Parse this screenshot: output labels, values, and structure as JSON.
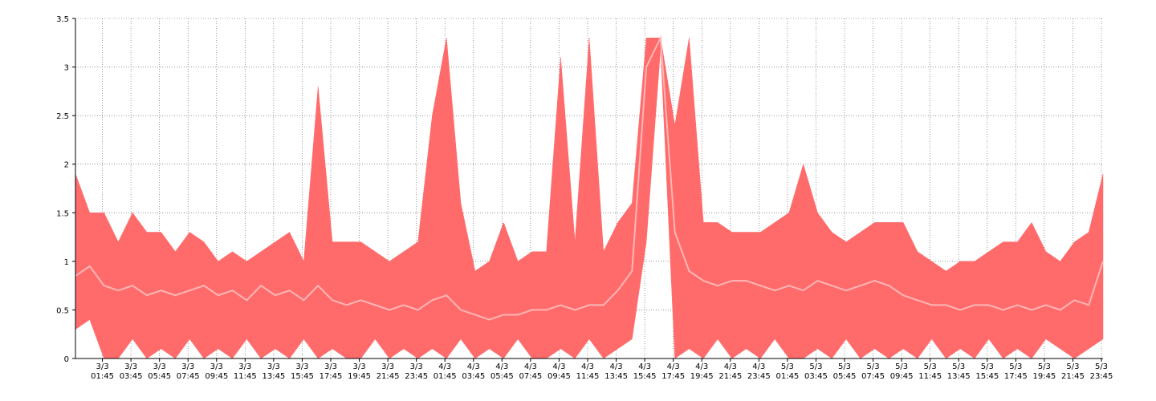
{
  "chart_data": {
    "type": "area",
    "title": "",
    "xlabel": "",
    "ylabel": "",
    "ylim": [
      0,
      3.5
    ],
    "y_ticks": [
      "0",
      "0.5",
      "1",
      "1.5",
      "2",
      "2.5",
      "3",
      "3.5"
    ],
    "x_range_hours": [
      0,
      72
    ],
    "x_tick_labels": [
      {
        "date": "3/3",
        "time": "01:45"
      },
      {
        "date": "3/3",
        "time": "03:45"
      },
      {
        "date": "3/3",
        "time": "05:45"
      },
      {
        "date": "3/3",
        "time": "07:45"
      },
      {
        "date": "3/3",
        "time": "09:45"
      },
      {
        "date": "3/3",
        "time": "11:45"
      },
      {
        "date": "3/3",
        "time": "13:45"
      },
      {
        "date": "3/3",
        "time": "15:45"
      },
      {
        "date": "3/3",
        "time": "17:45"
      },
      {
        "date": "3/3",
        "time": "19:45"
      },
      {
        "date": "3/3",
        "time": "21:45"
      },
      {
        "date": "3/3",
        "time": "23:45"
      },
      {
        "date": "4/3",
        "time": "01:45"
      },
      {
        "date": "4/3",
        "time": "03:45"
      },
      {
        "date": "4/3",
        "time": "05:45"
      },
      {
        "date": "4/3",
        "time": "07:45"
      },
      {
        "date": "4/3",
        "time": "09:45"
      },
      {
        "date": "4/3",
        "time": "11:45"
      },
      {
        "date": "4/3",
        "time": "13:45"
      },
      {
        "date": "4/3",
        "time": "15:45"
      },
      {
        "date": "4/3",
        "time": "17:45"
      },
      {
        "date": "4/3",
        "time": "19:45"
      },
      {
        "date": "4/3",
        "time": "21:45"
      },
      {
        "date": "4/3",
        "time": "23:45"
      },
      {
        "date": "5/3",
        "time": "01:45"
      },
      {
        "date": "5/3",
        "time": "03:45"
      },
      {
        "date": "5/3",
        "time": "05:45"
      },
      {
        "date": "5/3",
        "time": "07:45"
      },
      {
        "date": "5/3",
        "time": "09:45"
      },
      {
        "date": "5/3",
        "time": "11:45"
      },
      {
        "date": "5/3",
        "time": "13:45"
      },
      {
        "date": "5/3",
        "time": "15:45"
      },
      {
        "date": "5/3",
        "time": "17:45"
      },
      {
        "date": "5/3",
        "time": "19:45"
      },
      {
        "date": "5/3",
        "time": "21:45"
      },
      {
        "date": "5/3",
        "time": "23:45"
      }
    ],
    "grid": true,
    "legend": "none",
    "colors": {
      "band": "#ff6b6b",
      "avg": "#ffb6b6",
      "grid": "#555555",
      "axis": "#000000"
    },
    "series": [
      {
        "role": "max",
        "points": [
          [
            0.0,
            1.9
          ],
          [
            0.5,
            1.6
          ],
          [
            1.0,
            1.5
          ],
          [
            1.5,
            1.3
          ],
          [
            2.0,
            1.5
          ],
          [
            2.5,
            1.3
          ],
          [
            3.0,
            1.2
          ],
          [
            3.5,
            1.4
          ],
          [
            4.0,
            1.5
          ],
          [
            4.5,
            1.2
          ],
          [
            5.0,
            1.1
          ],
          [
            5.5,
            1.3
          ],
          [
            6.0,
            1.3
          ],
          [
            6.5,
            1.2
          ],
          [
            7.0,
            1.2
          ],
          [
            7.5,
            1.1
          ],
          [
            8.0,
            1.1
          ],
          [
            8.5,
            1.4
          ],
          [
            9.0,
            1.2
          ],
          [
            9.5,
            1.1
          ],
          [
            10.0,
            1.0
          ],
          [
            10.5,
            1.1
          ],
          [
            11.0,
            1.1
          ],
          [
            11.5,
            1.3
          ],
          [
            12.0,
            1.0
          ],
          [
            12.5,
            1.1
          ],
          [
            13.0,
            1.2
          ],
          [
            13.5,
            1.1
          ],
          [
            14.0,
            1.2
          ],
          [
            14.5,
            1.1
          ],
          [
            15.0,
            1.3
          ],
          [
            15.5,
            1.3
          ],
          [
            16.0,
            1.0
          ],
          [
            16.5,
            1.2
          ],
          [
            17.0,
            2.8
          ],
          [
            17.5,
            1.2
          ],
          [
            18.0,
            1.2
          ],
          [
            18.5,
            1.0
          ],
          [
            19.0,
            1.2
          ],
          [
            19.5,
            1.0
          ],
          [
            20.0,
            1.2
          ],
          [
            20.5,
            1.2
          ],
          [
            21.0,
            1.1
          ],
          [
            21.5,
            1.0
          ],
          [
            22.0,
            1.2
          ],
          [
            22.5,
            1.1
          ],
          [
            23.0,
            1.0
          ],
          [
            23.5,
            1.0
          ],
          [
            24.0,
            1.1
          ],
          [
            24.5,
            1.1
          ],
          [
            25.0,
            1.2
          ],
          [
            25.5,
            2.5
          ],
          [
            26.0,
            2.6
          ],
          [
            26.5,
            3.3
          ],
          [
            27.0,
            1.1
          ],
          [
            27.5,
            1.6
          ],
          [
            28.0,
            1.2
          ],
          [
            28.5,
            0.9
          ],
          [
            29.0,
            1.0
          ],
          [
            29.5,
            1.1
          ],
          [
            30.0,
            1.0
          ],
          [
            30.5,
            1.4
          ],
          [
            31.0,
            1.0
          ],
          [
            31.5,
            1.0
          ],
          [
            32.0,
            1.0
          ],
          [
            32.5,
            1.1
          ],
          [
            33.0,
            1.1
          ],
          [
            33.5,
            1.1
          ],
          [
            34.0,
            3.1
          ],
          [
            34.5,
            1.1
          ],
          [
            35.0,
            1.2
          ],
          [
            35.5,
            1.5
          ],
          [
            36.0,
            3.3
          ],
          [
            36.5,
            1.1
          ],
          [
            37.0,
            1.1
          ],
          [
            37.5,
            1.3
          ],
          [
            38.0,
            1.4
          ],
          [
            38.5,
            1.5
          ],
          [
            39.0,
            1.6
          ],
          [
            39.5,
            3.3
          ],
          [
            40.0,
            3.3
          ],
          [
            40.5,
            3.3
          ],
          [
            41.0,
            3.3
          ],
          [
            41.5,
            2.2
          ],
          [
            42.0,
            2.4
          ],
          [
            42.5,
            2.0
          ],
          [
            43.0,
            3.3
          ],
          [
            43.5,
            1.5
          ],
          [
            44.0,
            1.4
          ],
          [
            44.5,
            1.4
          ],
          [
            45.0,
            1.4
          ],
          [
            45.5,
            1.3
          ],
          [
            46.0,
            1.3
          ],
          [
            46.5,
            1.3
          ],
          [
            47.0,
            1.3
          ],
          [
            47.5,
            1.0
          ],
          [
            48.0,
            1.3
          ],
          [
            48.5,
            1.3
          ],
          [
            49.0,
            1.4
          ],
          [
            49.5,
            1.6
          ],
          [
            50.0,
            1.5
          ],
          [
            50.5,
            1.2
          ],
          [
            51.0,
            2.0
          ],
          [
            51.5,
            1.1
          ],
          [
            52.0,
            1.5
          ],
          [
            52.5,
            1.3
          ],
          [
            53.0,
            1.3
          ],
          [
            53.5,
            1.4
          ],
          [
            54.0,
            1.2
          ],
          [
            54.5,
            1.4
          ],
          [
            55.0,
            1.3
          ],
          [
            55.5,
            1.1
          ],
          [
            56.0,
            1.4
          ],
          [
            56.5,
            1.3
          ],
          [
            57.0,
            1.4
          ],
          [
            57.5,
            1.2
          ],
          [
            58.0,
            1.4
          ],
          [
            58.5,
            1.2
          ],
          [
            59.0,
            1.1
          ],
          [
            59.5,
            1.3
          ],
          [
            60.0,
            1.0
          ],
          [
            60.5,
            1.0
          ],
          [
            61.0,
            0.9
          ],
          [
            61.5,
            1.2
          ],
          [
            62.0,
            1.0
          ],
          [
            62.5,
            1.1
          ],
          [
            63.0,
            1.0
          ],
          [
            63.5,
            1.2
          ],
          [
            64.0,
            1.1
          ],
          [
            64.5,
            1.2
          ]
        ]
      },
      {
        "role": "max_continued",
        "points": [
          [
            65.0,
            1.2
          ],
          [
            65.5,
            1.3
          ],
          [
            66.0,
            1.2
          ],
          [
            66.5,
            1.4
          ],
          [
            67.0,
            1.5
          ],
          [
            67.5,
            1.2
          ],
          [
            68.0,
            1.1
          ],
          [
            68.5,
            1.2
          ],
          [
            69.0,
            1.0
          ],
          [
            69.5,
            1.3
          ],
          [
            70.0,
            1.2
          ],
          [
            70.5,
            1.4
          ],
          [
            71.0,
            1.3
          ],
          [
            71.5,
            1.2
          ],
          [
            72.0,
            1.9
          ]
        ]
      }
    ],
    "band": {
      "x": [
        0,
        1,
        2,
        3,
        4,
        5,
        6,
        7,
        8,
        9,
        10,
        11,
        12,
        13,
        14,
        15,
        16,
        17,
        18,
        19,
        20,
        21,
        22,
        23,
        24,
        25,
        26,
        27,
        28,
        29,
        30,
        31,
        32,
        33,
        34,
        35,
        36,
        37,
        38,
        39,
        40,
        41,
        42,
        43,
        44,
        45,
        46,
        47,
        48,
        49,
        50,
        51,
        52,
        53,
        54,
        55,
        56,
        57,
        58,
        59,
        60,
        61,
        62,
        63,
        64,
        65,
        66,
        67,
        68,
        69,
        70,
        71,
        72
      ],
      "max": [
        1.9,
        1.5,
        1.5,
        1.2,
        1.5,
        1.3,
        1.3,
        1.1,
        1.3,
        1.2,
        1.0,
        1.1,
        1.0,
        1.1,
        1.2,
        1.3,
        1.0,
        2.8,
        1.2,
        1.2,
        1.2,
        1.1,
        1.0,
        1.1,
        1.2,
        2.5,
        3.3,
        1.6,
        0.9,
        1.0,
        1.4,
        1.0,
        1.1,
        1.1,
        3.1,
        1.2,
        3.3,
        1.1,
        1.4,
        1.6,
        3.3,
        3.3,
        2.4,
        3.3,
        1.4,
        1.4,
        1.3,
        1.3,
        1.3,
        1.4,
        1.5,
        2.0,
        1.5,
        1.3,
        1.2,
        1.3,
        1.4,
        1.4,
        1.4,
        1.1,
        1.0,
        0.9,
        1.0,
        1.0,
        1.1,
        1.2,
        1.2,
        1.4,
        1.1,
        1.0,
        1.2,
        1.3,
        1.9
      ],
      "min": [
        0.3,
        0.4,
        0.0,
        0.0,
        0.2,
        0.0,
        0.1,
        0.0,
        0.2,
        0.0,
        0.1,
        0.0,
        0.2,
        0.0,
        0.1,
        0.0,
        0.2,
        0.0,
        0.1,
        0.0,
        0.0,
        0.2,
        0.0,
        0.1,
        0.0,
        0.1,
        0.0,
        0.2,
        0.0,
        0.1,
        0.0,
        0.2,
        0.0,
        0.0,
        0.1,
        0.0,
        0.2,
        0.0,
        0.1,
        0.2,
        1.2,
        3.2,
        0.0,
        0.1,
        0.0,
        0.2,
        0.0,
        0.1,
        0.0,
        0.2,
        0.0,
        0.0,
        0.1,
        0.0,
        0.2,
        0.0,
        0.1,
        0.0,
        0.1,
        0.0,
        0.2,
        0.0,
        0.1,
        0.0,
        0.2,
        0.0,
        0.1,
        0.0,
        0.2,
        0.1,
        0.0,
        0.1,
        0.2
      ],
      "avg": [
        0.85,
        0.95,
        0.75,
        0.7,
        0.75,
        0.65,
        0.7,
        0.65,
        0.7,
        0.75,
        0.65,
        0.7,
        0.6,
        0.75,
        0.65,
        0.7,
        0.6,
        0.75,
        0.6,
        0.55,
        0.6,
        0.55,
        0.5,
        0.55,
        0.5,
        0.6,
        0.65,
        0.5,
        0.45,
        0.4,
        0.45,
        0.45,
        0.5,
        0.5,
        0.55,
        0.5,
        0.55,
        0.55,
        0.7,
        0.9,
        3.0,
        3.3,
        1.3,
        0.9,
        0.8,
        0.75,
        0.8,
        0.8,
        0.75,
        0.7,
        0.75,
        0.7,
        0.8,
        0.75,
        0.7,
        0.75,
        0.8,
        0.75,
        0.65,
        0.6,
        0.55,
        0.55,
        0.5,
        0.55,
        0.55,
        0.5,
        0.55,
        0.5,
        0.55,
        0.5,
        0.6,
        0.55,
        1.0
      ]
    }
  }
}
